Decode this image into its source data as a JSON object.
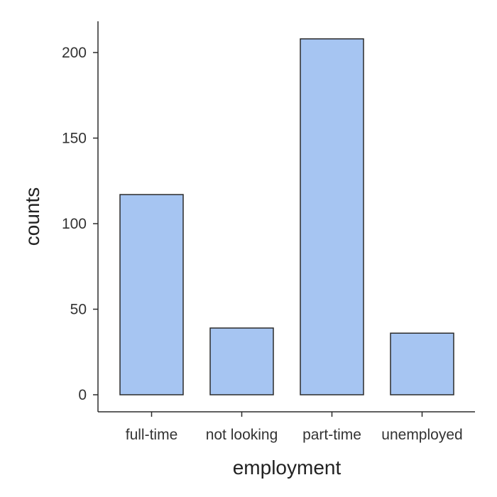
{
  "chart_data": {
    "type": "bar",
    "title": "",
    "xlabel": "employment",
    "ylabel": "counts",
    "categories": [
      "full-time",
      "not looking",
      "part-time",
      "unemployed"
    ],
    "values": [
      117,
      39,
      208,
      36
    ],
    "ylim": [
      0,
      220
    ],
    "yticks": [
      0,
      50,
      100,
      150,
      200
    ],
    "grid": false,
    "legend": "none",
    "colors": {
      "bar_fill": "#a6c5f2",
      "bar_stroke": "#2b2b2b",
      "axis": "#2b2b2b",
      "text": "#333333"
    }
  }
}
